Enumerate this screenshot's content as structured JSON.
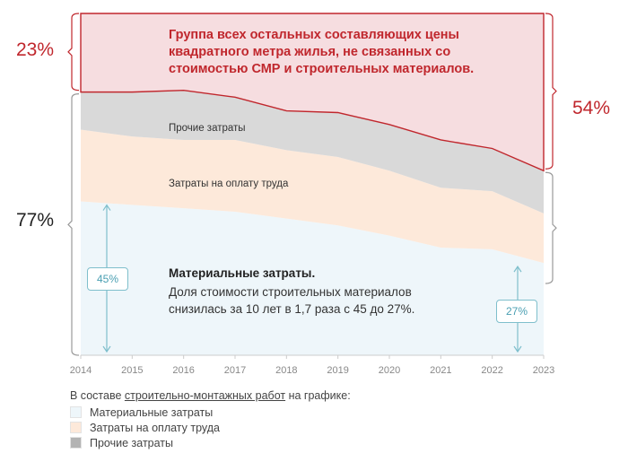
{
  "chart_data": {
    "type": "area",
    "stacked": true,
    "x": [
      "2014",
      "2015",
      "2016",
      "2017",
      "2018",
      "2019",
      "2020",
      "2021",
      "2022",
      "2023"
    ],
    "series": [
      {
        "name": "Материальные затраты",
        "values": [
          45,
          44,
          43,
          42,
          40,
          38,
          35,
          31.5,
          31,
          27
        ],
        "color": "#eef6fa"
      },
      {
        "name": "Затраты на оплату труда",
        "values": [
          21,
          20,
          20,
          21,
          20,
          20,
          19,
          17.5,
          17,
          14.5
        ],
        "color": "#fde9da"
      },
      {
        "name": "Прочие затраты",
        "values": [
          11,
          13,
          14.5,
          12.5,
          11.5,
          13,
          13.5,
          14,
          12.5,
          12.5
        ],
        "color": "#d9d9d9"
      },
      {
        "name": "Группа всех остальных составляющих цены квадратного метра жилья",
        "values": [
          23,
          23,
          22.5,
          24.5,
          28.5,
          29,
          32.5,
          37,
          39.5,
          46
        ],
        "color": "#f6dde0"
      }
    ],
    "ylim": [
      0,
      100
    ],
    "grid": false
  },
  "labels": {
    "left_top_pct": "23%",
    "left_bottom_pct": "77%",
    "right_pct": "54%",
    "other_group_text": "Группа всех остальных составляющих цены квадратного метра жилья, не связанных со стоимостью СМР и строительных материалов.",
    "other_costs": "Прочие затраты",
    "labor_costs": "Затраты на оплату труда",
    "materials_title": "Материальные затраты.",
    "materials_desc": "Доля стоимости строительных материалов снизилась за 10 лет в 1,7 раза с 45 до 27%.",
    "start_share": "45%",
    "end_share": "27%"
  },
  "legend": {
    "title_prefix": "В составе ",
    "title_link": "строительно-монтажных работ",
    "title_suffix": " на графике:",
    "items": [
      {
        "label": "Материальные затраты",
        "color": "#eef6fa"
      },
      {
        "label": "Затраты на оплату труда",
        "color": "#fde9da"
      },
      {
        "label": "Прочие затраты",
        "color": "#b3b3b3"
      }
    ]
  },
  "colors": {
    "red": "#c0272d",
    "teal": "#7fbfcc",
    "axis": "#cccccc"
  }
}
